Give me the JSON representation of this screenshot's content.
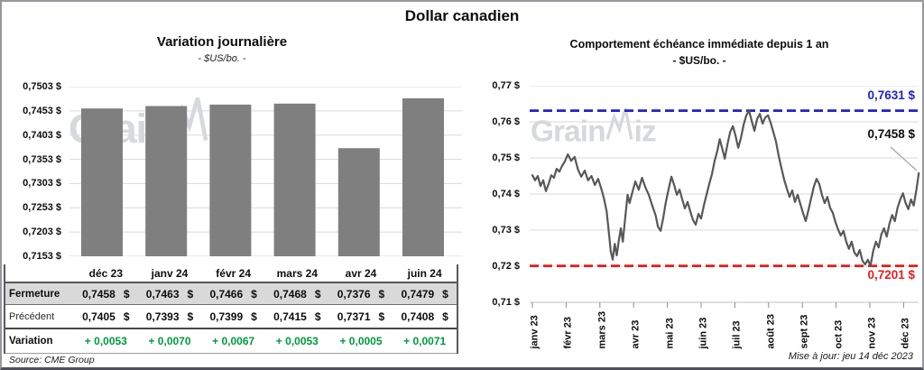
{
  "title": "Dollar canadien",
  "colors": {
    "blue": "#2121cc",
    "red": "#e81c1c",
    "green": "#009a3c",
    "bar": "#7f7f7f",
    "line": "#58585a",
    "gridline": "#dadada",
    "table_band": "#d9d9d9",
    "watermark": "#d6d8db"
  },
  "watermark": {
    "part1": "Grain",
    "part2": "iz"
  },
  "footer": {
    "source": "Source: CME Group",
    "updated": "Mise à jour: jeu 14 déc 2023"
  },
  "table": {
    "col_headers": [
      "déc 23",
      "janv 24",
      "févr 24",
      "mars 24",
      "avr 24",
      "juin 24"
    ],
    "rows": [
      {
        "label": "Fermeture",
        "style": "close",
        "values": [
          "0,7458 $",
          "0,7463 $",
          "0,7466 $",
          "0,7468 $",
          "0,7376 $",
          "0,7479 $"
        ]
      },
      {
        "label": "Précédent",
        "style": "prev",
        "values": [
          "0,7405 $",
          "0,7393 $",
          "0,7399 $",
          "0,7415 $",
          "0,7371 $",
          "0,7408 $"
        ]
      },
      {
        "label": "Variation",
        "style": "varn",
        "values": [
          "+ 0,0053",
          "+ 0,0070",
          "+ 0,0067",
          "+ 0,0053",
          "+ 0,0005",
          "+ 0,0071"
        ]
      }
    ]
  },
  "chart_data": [
    {
      "type": "bar",
      "title": "Variation  journalière",
      "subtitle": "- $US/bo. -",
      "categories": [
        "déc 23",
        "janv 24",
        "févr 24",
        "mars 24",
        "avr 24",
        "juin 24"
      ],
      "values": [
        0.7458,
        0.7463,
        0.7466,
        0.7468,
        0.7376,
        0.7479
      ],
      "ylim": [
        0.7153,
        0.7503
      ],
      "ytick_step": 0.005,
      "ytick_labels": [
        "0,7503 $",
        "0,7453 $",
        "0,7403 $",
        "0,7353 $",
        "0,7303 $",
        "0,7253 $",
        "0,7203 $",
        "0,7153 $"
      ],
      "grid": true,
      "legend": false
    },
    {
      "type": "line",
      "title": "Comportement échéance immédiate depuis 1 an",
      "subtitle": "- $US/bo. -",
      "ylim": [
        0.71,
        0.77
      ],
      "ytick_step": 0.01,
      "ytick_labels": [
        "0,77 $",
        "0,76 $",
        "0,75 $",
        "0,74 $",
        "0,73 $",
        "0,72 $",
        "0,71 $"
      ],
      "x_labels": [
        "janv 23",
        "févr 23",
        "mars 23",
        "avr 23",
        "mai 23",
        "juin 23",
        "juil 23",
        "août 23",
        "sept 23",
        "oct 23",
        "nov 23",
        "déc 23"
      ],
      "grid": true,
      "legend": false,
      "high_line": {
        "value": 0.7631,
        "label": "0,7631 $"
      },
      "low_line": {
        "value": 0.7201,
        "label": "0,7201 $"
      },
      "last_point": {
        "value": 0.7458,
        "label": "0,7458 $"
      },
      "series": [
        {
          "name": "échéance immédiate",
          "points": [
            [
              0.0,
              0.7452
            ],
            [
              0.08,
              0.7438
            ],
            [
              0.16,
              0.745
            ],
            [
              0.24,
              0.7422
            ],
            [
              0.32,
              0.7438
            ],
            [
              0.4,
              0.7408
            ],
            [
              0.48,
              0.7428
            ],
            [
              0.56,
              0.7452
            ],
            [
              0.64,
              0.7445
            ],
            [
              0.72,
              0.747
            ],
            [
              0.8,
              0.7462
            ],
            [
              0.88,
              0.7478
            ],
            [
              0.96,
              0.749
            ],
            [
              1.05,
              0.751
            ],
            [
              1.15,
              0.7492
            ],
            [
              1.25,
              0.7503
            ],
            [
              1.35,
              0.7468
            ],
            [
              1.45,
              0.7448
            ],
            [
              1.55,
              0.7465
            ],
            [
              1.65,
              0.7438
            ],
            [
              1.75,
              0.745
            ],
            [
              1.85,
              0.7425
            ],
            [
              1.95,
              0.7442
            ],
            [
              2.05,
              0.7412
            ],
            [
              2.12,
              0.7388
            ],
            [
              2.2,
              0.7352
            ],
            [
              2.26,
              0.73
            ],
            [
              2.32,
              0.7242
            ],
            [
              2.38,
              0.7218
            ],
            [
              2.44,
              0.7262
            ],
            [
              2.5,
              0.723
            ],
            [
              2.56,
              0.727
            ],
            [
              2.62,
              0.7305
            ],
            [
              2.68,
              0.7268
            ],
            [
              2.75,
              0.7332
            ],
            [
              2.82,
              0.7398
            ],
            [
              2.88,
              0.7375
            ],
            [
              2.95,
              0.74
            ],
            [
              3.05,
              0.7435
            ],
            [
              3.15,
              0.7412
            ],
            [
              3.25,
              0.7445
            ],
            [
              3.35,
              0.7418
            ],
            [
              3.45,
              0.7398
            ],
            [
              3.55,
              0.7368
            ],
            [
              3.65,
              0.7342
            ],
            [
              3.72,
              0.731
            ],
            [
              3.8,
              0.7298
            ],
            [
              3.88,
              0.7335
            ],
            [
              3.95,
              0.7375
            ],
            [
              4.05,
              0.742
            ],
            [
              4.12,
              0.7448
            ],
            [
              4.2,
              0.7425
            ],
            [
              4.28,
              0.7398
            ],
            [
              4.36,
              0.7412
            ],
            [
              4.44,
              0.7385
            ],
            [
              4.52,
              0.736
            ],
            [
              4.6,
              0.7378
            ],
            [
              4.68,
              0.7352
            ],
            [
              4.76,
              0.7328
            ],
            [
              4.84,
              0.7315
            ],
            [
              4.92,
              0.7345
            ],
            [
              5.0,
              0.7332
            ],
            [
              5.08,
              0.7368
            ],
            [
              5.16,
              0.7398
            ],
            [
              5.24,
              0.7428
            ],
            [
              5.32,
              0.7455
            ],
            [
              5.4,
              0.7492
            ],
            [
              5.48,
              0.752
            ],
            [
              5.55,
              0.7552
            ],
            [
              5.62,
              0.7528
            ],
            [
              5.7,
              0.7498
            ],
            [
              5.78,
              0.7538
            ],
            [
              5.86,
              0.7572
            ],
            [
              5.94,
              0.7588
            ],
            [
              6.02,
              0.7562
            ],
            [
              6.1,
              0.7528
            ],
            [
              6.18,
              0.7555
            ],
            [
              6.26,
              0.7592
            ],
            [
              6.34,
              0.7618
            ],
            [
              6.42,
              0.7631
            ],
            [
              6.5,
              0.7602
            ],
            [
              6.58,
              0.7575
            ],
            [
              6.66,
              0.7608
            ],
            [
              6.74,
              0.7622
            ],
            [
              6.82,
              0.7595
            ],
            [
              6.9,
              0.7612
            ],
            [
              6.98,
              0.7618
            ],
            [
              7.06,
              0.7598
            ],
            [
              7.14,
              0.7572
            ],
            [
              7.22,
              0.7545
            ],
            [
              7.3,
              0.7505
            ],
            [
              7.38,
              0.7472
            ],
            [
              7.46,
              0.744
            ],
            [
              7.54,
              0.7415
            ],
            [
              7.62,
              0.7392
            ],
            [
              7.7,
              0.741
            ],
            [
              7.78,
              0.7378
            ],
            [
              7.86,
              0.7398
            ],
            [
              7.94,
              0.7372
            ],
            [
              8.02,
              0.7348
            ],
            [
              8.1,
              0.7325
            ],
            [
              8.18,
              0.7355
            ],
            [
              8.26,
              0.7388
            ],
            [
              8.34,
              0.742
            ],
            [
              8.42,
              0.7442
            ],
            [
              8.5,
              0.7428
            ],
            [
              8.58,
              0.7398
            ],
            [
              8.66,
              0.7375
            ],
            [
              8.74,
              0.7392
            ],
            [
              8.82,
              0.7362
            ],
            [
              8.9,
              0.7348
            ],
            [
              8.98,
              0.7322
            ],
            [
              9.06,
              0.7302
            ],
            [
              9.14,
              0.7285
            ],
            [
              9.22,
              0.7298
            ],
            [
              9.3,
              0.7268
            ],
            [
              9.38,
              0.7248
            ],
            [
              9.46,
              0.7268
            ],
            [
              9.54,
              0.7238
            ],
            [
              9.62,
              0.7228
            ],
            [
              9.7,
              0.7245
            ],
            [
              9.78,
              0.7215
            ],
            [
              9.86,
              0.7205
            ],
            [
              9.94,
              0.7218
            ],
            [
              10.02,
              0.7201
            ],
            [
              10.1,
              0.7242
            ],
            [
              10.18,
              0.7268
            ],
            [
              10.26,
              0.7252
            ],
            [
              10.34,
              0.7288
            ],
            [
              10.42,
              0.7305
            ],
            [
              10.5,
              0.7282
            ],
            [
              10.58,
              0.7318
            ],
            [
              10.66,
              0.7342
            ],
            [
              10.74,
              0.7325
            ],
            [
              10.82,
              0.7362
            ],
            [
              10.9,
              0.7385
            ],
            [
              10.98,
              0.7402
            ],
            [
              11.06,
              0.7375
            ],
            [
              11.14,
              0.7358
            ],
            [
              11.22,
              0.7385
            ],
            [
              11.3,
              0.7368
            ],
            [
              11.38,
              0.7412
            ],
            [
              11.45,
              0.7458
            ]
          ]
        }
      ]
    }
  ]
}
